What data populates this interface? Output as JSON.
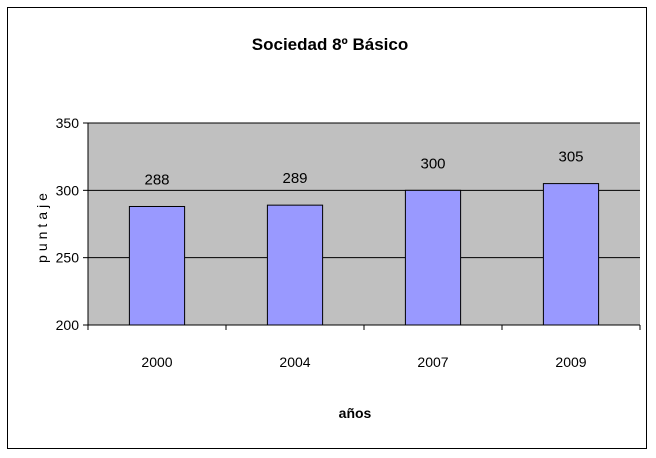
{
  "chart_data": {
    "type": "bar",
    "title": "Sociedad 8º Básico",
    "xlabel": "años",
    "ylabel": "puntaje",
    "categories": [
      "2000",
      "2004",
      "2007",
      "2009"
    ],
    "values": [
      288,
      289,
      300,
      305
    ],
    "data_labels": [
      "288",
      "289",
      "300",
      "305"
    ],
    "ylim": [
      200,
      350
    ],
    "yticks": [
      "200",
      "250",
      "300",
      "350"
    ],
    "grid": true,
    "legend": "none",
    "colors": {
      "bar_fill": "#9999ff",
      "bar_stroke": "#000000",
      "plot_background": "#c0c0c0",
      "gridline": "#000000"
    }
  }
}
